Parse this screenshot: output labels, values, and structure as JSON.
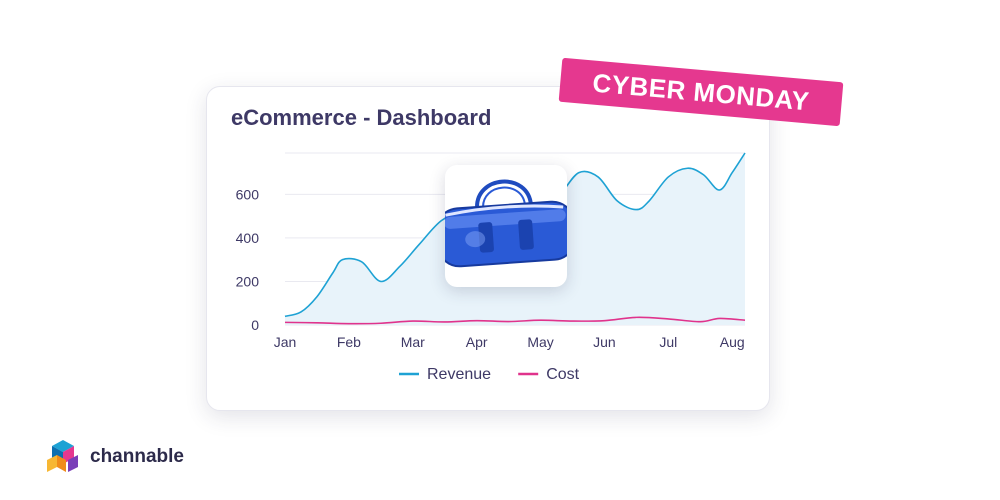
{
  "card": {
    "title": "eCommerce - Dashboard"
  },
  "badge": {
    "label": "CYBER MONDAY"
  },
  "brand": {
    "name": "channable"
  },
  "product": {
    "icon": "handbag-icon"
  },
  "colors": {
    "revenue": "#1ea2d4",
    "cost": "#e0338c",
    "area": "#e8f3fa",
    "badge": "#e5388f",
    "text": "#3e3966"
  },
  "chart_data": {
    "type": "line",
    "title": "eCommerce - Dashboard",
    "xlabel": "",
    "ylabel": "",
    "x_ticks": [
      "Jan",
      "Feb",
      "Mar",
      "Apr",
      "May",
      "Jun",
      "Jul",
      "Aug"
    ],
    "y_ticks": [
      0,
      200,
      400,
      600
    ],
    "ylim": [
      0,
      790
    ],
    "xlim": [
      0,
      7.2
    ],
    "grid": true,
    "legend": "bottom",
    "series": [
      {
        "name": "Revenue",
        "color": "#1ea2d4",
        "fill": true,
        "x": [
          0,
          0.25,
          0.5,
          0.75,
          0.9,
          1.2,
          1.5,
          1.8,
          2.1,
          2.45,
          2.8,
          3.1,
          3.4,
          3.7,
          4.0,
          4.3,
          4.6,
          4.9,
          5.2,
          5.5,
          5.7,
          6.0,
          6.3,
          6.55,
          6.8,
          7.0,
          7.2
        ],
        "values": [
          40,
          60,
          130,
          240,
          300,
          290,
          200,
          270,
          370,
          480,
          520,
          500,
          530,
          540,
          550,
          600,
          700,
          680,
          570,
          530,
          570,
          680,
          720,
          690,
          620,
          700,
          790
        ]
      },
      {
        "name": "Cost",
        "color": "#e0338c",
        "fill": false,
        "x": [
          0,
          0.5,
          1.0,
          1.5,
          2.0,
          2.5,
          3.0,
          3.5,
          4.0,
          4.5,
          5.0,
          5.5,
          6.0,
          6.5,
          6.8,
          7.2
        ],
        "values": [
          12,
          10,
          6,
          8,
          18,
          14,
          20,
          16,
          22,
          18,
          20,
          35,
          28,
          15,
          30,
          22
        ]
      }
    ]
  }
}
